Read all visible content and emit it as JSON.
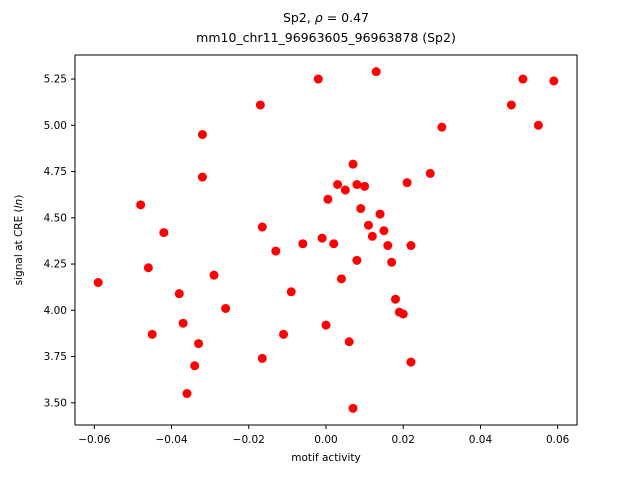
{
  "chart_data": {
    "type": "scatter",
    "title_prefix": "Sp2, ",
    "title_rho": "ρ",
    "title_suffix": " = 0.47",
    "subtitle": "mm10_chr11_96963605_96963878 (Sp2)",
    "xlabel": "motif activity",
    "ylabel_prefix": "signal at CRE (",
    "ylabel_italic": "ln",
    "ylabel_suffix": ")",
    "marker_color": "#ff0000",
    "marker_radius": 4.5,
    "xlim": [
      -0.065,
      0.065
    ],
    "ylim": [
      3.38,
      5.38
    ],
    "xticks": [
      -0.06,
      -0.04,
      -0.02,
      0.0,
      0.02,
      0.04,
      0.06
    ],
    "yticks": [
      3.5,
      3.75,
      4.0,
      4.25,
      4.5,
      4.75,
      5.0,
      5.25
    ],
    "grid": false,
    "legend": "none",
    "points": [
      [
        -0.059,
        4.15
      ],
      [
        -0.048,
        4.57
      ],
      [
        -0.046,
        4.23
      ],
      [
        -0.045,
        3.87
      ],
      [
        -0.042,
        4.42
      ],
      [
        -0.038,
        4.09
      ],
      [
        -0.037,
        3.93
      ],
      [
        -0.036,
        3.55
      ],
      [
        -0.034,
        3.7
      ],
      [
        -0.033,
        3.82
      ],
      [
        -0.032,
        4.95
      ],
      [
        -0.032,
        4.72
      ],
      [
        -0.029,
        4.19
      ],
      [
        -0.026,
        4.01
      ],
      [
        -0.017,
        5.11
      ],
      [
        -0.0165,
        4.45
      ],
      [
        -0.0165,
        3.74
      ],
      [
        -0.013,
        4.32
      ],
      [
        -0.011,
        3.87
      ],
      [
        -0.009,
        4.1
      ],
      [
        -0.006,
        4.36
      ],
      [
        -0.002,
        5.25
      ],
      [
        -0.001,
        4.39
      ],
      [
        0.0,
        3.92
      ],
      [
        0.0005,
        4.6
      ],
      [
        0.002,
        4.36
      ],
      [
        0.003,
        4.68
      ],
      [
        0.004,
        4.17
      ],
      [
        0.005,
        4.65
      ],
      [
        0.006,
        3.83
      ],
      [
        0.007,
        4.79
      ],
      [
        0.007,
        3.47
      ],
      [
        0.008,
        4.68
      ],
      [
        0.008,
        4.27
      ],
      [
        0.009,
        4.55
      ],
      [
        0.01,
        4.67
      ],
      [
        0.011,
        4.46
      ],
      [
        0.012,
        4.4
      ],
      [
        0.013,
        5.29
      ],
      [
        0.014,
        4.52
      ],
      [
        0.015,
        4.43
      ],
      [
        0.016,
        4.35
      ],
      [
        0.017,
        4.26
      ],
      [
        0.018,
        4.06
      ],
      [
        0.019,
        3.99
      ],
      [
        0.02,
        3.98
      ],
      [
        0.021,
        4.69
      ],
      [
        0.022,
        4.35
      ],
      [
        0.022,
        3.72
      ],
      [
        0.027,
        4.74
      ],
      [
        0.03,
        4.99
      ],
      [
        0.048,
        5.11
      ],
      [
        0.051,
        5.25
      ],
      [
        0.055,
        5.0
      ],
      [
        0.059,
        5.24
      ]
    ]
  }
}
